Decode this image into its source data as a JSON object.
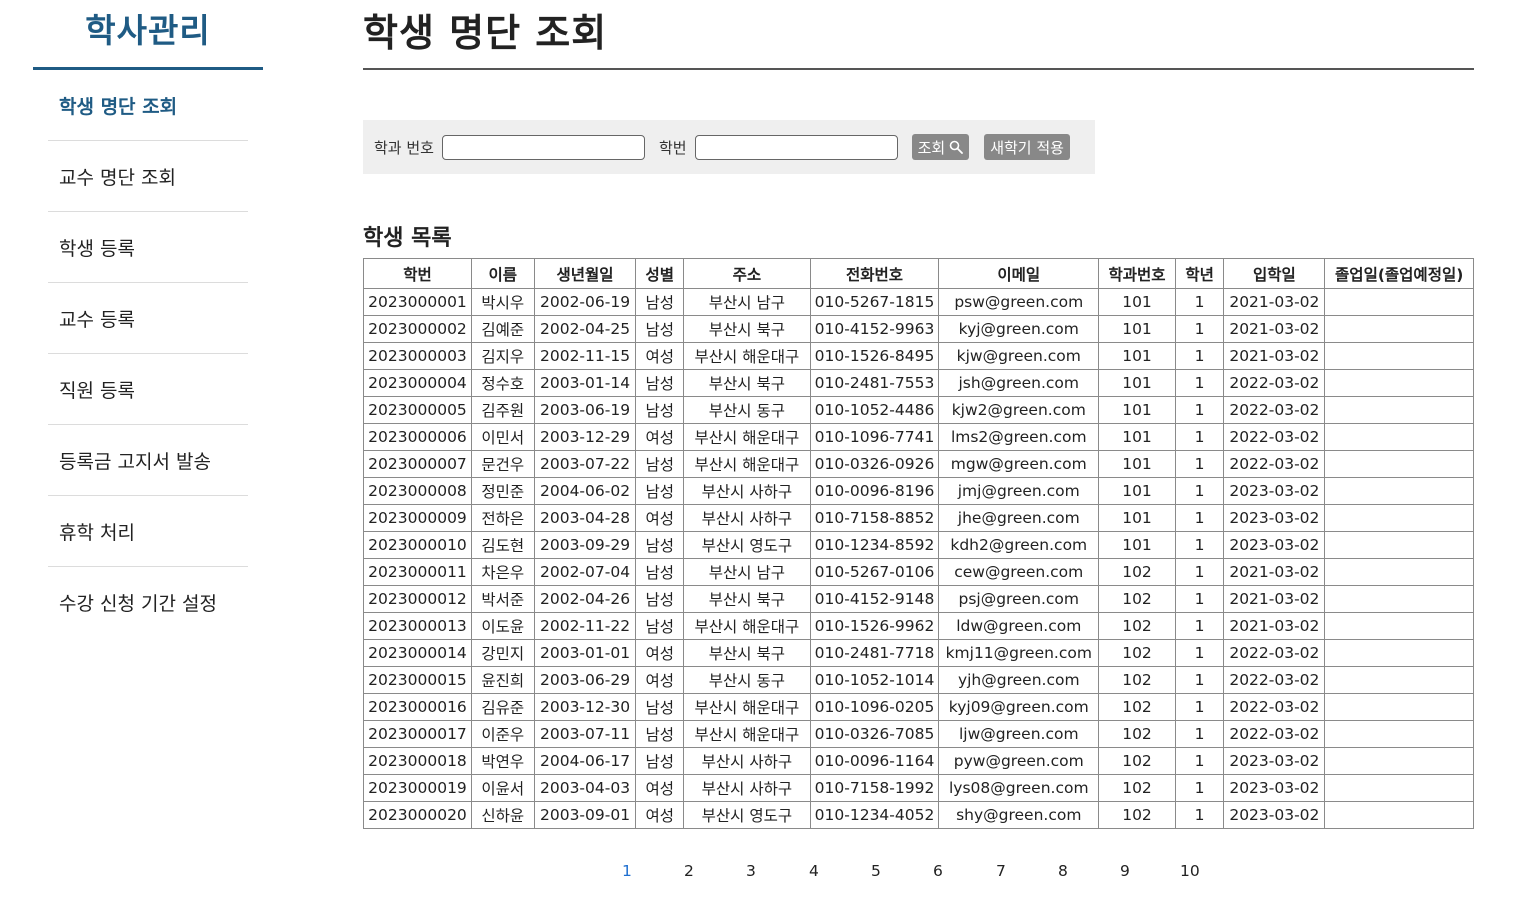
{
  "sidebar": {
    "title": "학사관리",
    "items": [
      {
        "label": "학생 명단 조회",
        "active": true
      },
      {
        "label": "교수 명단 조회",
        "active": false
      },
      {
        "label": "학생 등록",
        "active": false
      },
      {
        "label": "교수 등록",
        "active": false
      },
      {
        "label": "직원 등록",
        "active": false
      },
      {
        "label": "등록금 고지서 발송",
        "active": false
      },
      {
        "label": "휴학 처리",
        "active": false
      },
      {
        "label": "수강 신청 기간 설정",
        "active": false
      }
    ]
  },
  "main": {
    "title": "학생 명단 조회",
    "search": {
      "dept_label": "학과 번호",
      "dept_value": "",
      "student_id_label": "학번",
      "student_id_value": "",
      "search_button": "조회",
      "search_icon": "search-icon",
      "new_semester_button": "새학기 적용"
    },
    "list_title": "학생 목록",
    "table": {
      "headers": [
        "학번",
        "이름",
        "생년월일",
        "성별",
        "주소",
        "전화번호",
        "이메일",
        "학과번호",
        "학년",
        "입학일",
        "졸업일(졸업예정일)"
      ],
      "rows": [
        [
          "2023000001",
          "박시우",
          "2002-06-19",
          "남성",
          "부산시 남구",
          "010-5267-1815",
          "psw@green.com",
          "101",
          "1",
          "2021-03-02",
          ""
        ],
        [
          "2023000002",
          "김예준",
          "2002-04-25",
          "남성",
          "부산시 북구",
          "010-4152-9963",
          "kyj@green.com",
          "101",
          "1",
          "2021-03-02",
          ""
        ],
        [
          "2023000003",
          "김지우",
          "2002-11-15",
          "여성",
          "부산시 해운대구",
          "010-1526-8495",
          "kjw@green.com",
          "101",
          "1",
          "2021-03-02",
          ""
        ],
        [
          "2023000004",
          "정수호",
          "2003-01-14",
          "남성",
          "부산시 북구",
          "010-2481-7553",
          "jsh@green.com",
          "101",
          "1",
          "2022-03-02",
          ""
        ],
        [
          "2023000005",
          "김주원",
          "2003-06-19",
          "남성",
          "부산시 동구",
          "010-1052-4486",
          "kjw2@green.com",
          "101",
          "1",
          "2022-03-02",
          ""
        ],
        [
          "2023000006",
          "이민서",
          "2003-12-29",
          "여성",
          "부산시 해운대구",
          "010-1096-7741",
          "lms2@green.com",
          "101",
          "1",
          "2022-03-02",
          ""
        ],
        [
          "2023000007",
          "문건우",
          "2003-07-22",
          "남성",
          "부산시 해운대구",
          "010-0326-0926",
          "mgw@green.com",
          "101",
          "1",
          "2022-03-02",
          ""
        ],
        [
          "2023000008",
          "정민준",
          "2004-06-02",
          "남성",
          "부산시 사하구",
          "010-0096-8196",
          "jmj@green.com",
          "101",
          "1",
          "2023-03-02",
          ""
        ],
        [
          "2023000009",
          "전하은",
          "2003-04-28",
          "여성",
          "부산시 사하구",
          "010-7158-8852",
          "jhe@green.com",
          "101",
          "1",
          "2023-03-02",
          ""
        ],
        [
          "2023000010",
          "김도현",
          "2003-09-29",
          "남성",
          "부산시 영도구",
          "010-1234-8592",
          "kdh2@green.com",
          "101",
          "1",
          "2023-03-02",
          ""
        ],
        [
          "2023000011",
          "차은우",
          "2002-07-04",
          "남성",
          "부산시 남구",
          "010-5267-0106",
          "cew@green.com",
          "102",
          "1",
          "2021-03-02",
          ""
        ],
        [
          "2023000012",
          "박서준",
          "2002-04-26",
          "남성",
          "부산시 북구",
          "010-4152-9148",
          "psj@green.com",
          "102",
          "1",
          "2021-03-02",
          ""
        ],
        [
          "2023000013",
          "이도윤",
          "2002-11-22",
          "남성",
          "부산시 해운대구",
          "010-1526-9962",
          "ldw@green.com",
          "102",
          "1",
          "2021-03-02",
          ""
        ],
        [
          "2023000014",
          "강민지",
          "2003-01-01",
          "여성",
          "부산시 북구",
          "010-2481-7718",
          "kmj11@green.com",
          "102",
          "1",
          "2022-03-02",
          ""
        ],
        [
          "2023000015",
          "윤진희",
          "2003-06-29",
          "여성",
          "부산시 동구",
          "010-1052-1014",
          "yjh@green.com",
          "102",
          "1",
          "2022-03-02",
          ""
        ],
        [
          "2023000016",
          "김유준",
          "2003-12-30",
          "남성",
          "부산시 해운대구",
          "010-1096-0205",
          "kyj09@green.com",
          "102",
          "1",
          "2022-03-02",
          ""
        ],
        [
          "2023000017",
          "이준우",
          "2003-07-11",
          "남성",
          "부산시 해운대구",
          "010-0326-7085",
          "ljw@green.com",
          "102",
          "1",
          "2022-03-02",
          ""
        ],
        [
          "2023000018",
          "박연우",
          "2004-06-17",
          "남성",
          "부산시 사하구",
          "010-0096-1164",
          "pyw@green.com",
          "102",
          "1",
          "2023-03-02",
          ""
        ],
        [
          "2023000019",
          "이윤서",
          "2003-04-03",
          "여성",
          "부산시 사하구",
          "010-7158-1992",
          "lys08@green.com",
          "102",
          "1",
          "2023-03-02",
          ""
        ],
        [
          "2023000020",
          "신하윤",
          "2003-09-01",
          "여성",
          "부산시 영도구",
          "010-1234-4052",
          "shy@green.com",
          "102",
          "1",
          "2023-03-02",
          ""
        ]
      ]
    },
    "pagination": {
      "pages": [
        "1",
        "2",
        "3",
        "4",
        "5",
        "6",
        "7",
        "8",
        "9",
        "10"
      ],
      "current": "1"
    }
  },
  "colors": {
    "brand": "#1f5b84",
    "current_page": "#1f6fd0",
    "button_bg": "#888888",
    "search_bar_bg": "#efefef"
  }
}
